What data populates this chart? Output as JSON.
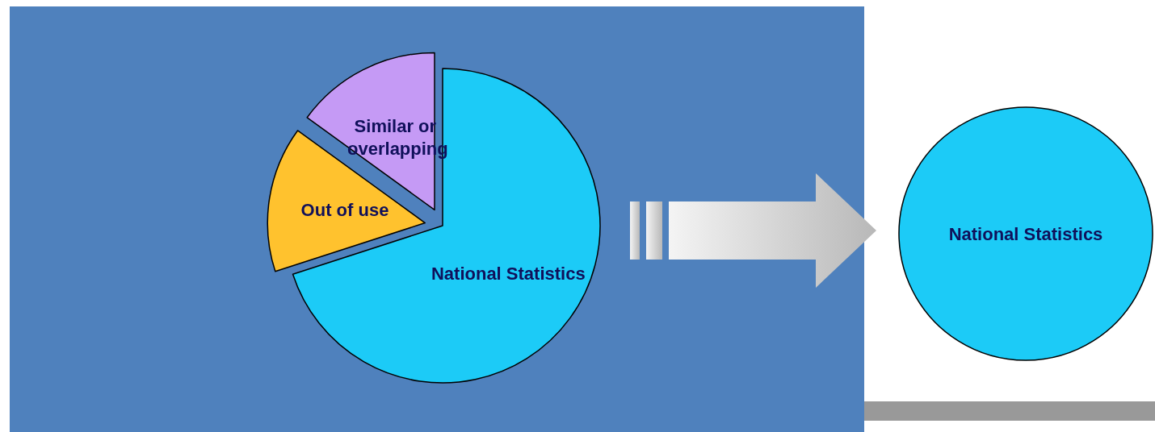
{
  "chart_data": [
    {
      "type": "pie",
      "categories": [
        "National Statistics",
        "Out of use",
        "Similar or overlapping"
      ],
      "values": [
        70,
        15,
        15
      ],
      "colors": [
        "#1ccbf7",
        "#ffc22e",
        "#c59af5"
      ]
    },
    {
      "type": "pie",
      "categories": [
        "National Statistics"
      ],
      "values": [
        100
      ],
      "colors": [
        "#1ccbf7"
      ]
    }
  ]
}
